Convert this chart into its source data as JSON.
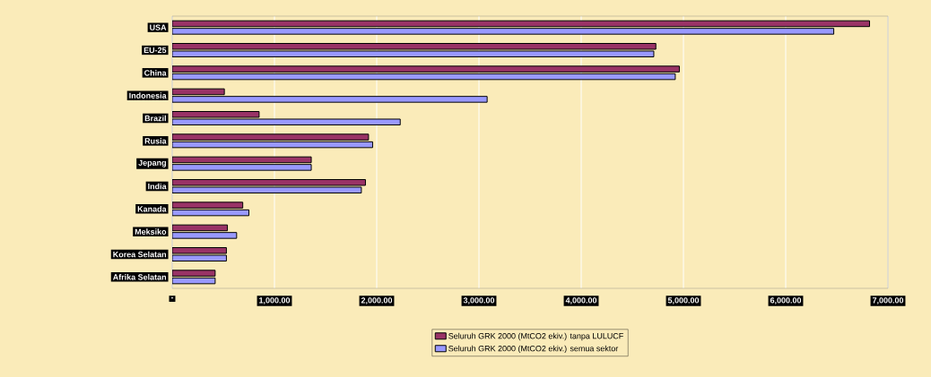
{
  "chart_data": {
    "type": "bar",
    "orientation": "horizontal",
    "categories": [
      "USA",
      "EU-25",
      "China",
      "Indonesia",
      "Brazil",
      "Rusia",
      "Jepang",
      "India",
      "Kanada",
      "Meksiko",
      "Korea Selatan",
      "Afrika Selatan"
    ],
    "series": [
      {
        "name": "Seluruh GRK 2000 (MtCO2 ekiv.) tanpa LULUCF",
        "color": "#993366",
        "values": [
          6820,
          4730,
          4960,
          510,
          850,
          1920,
          1360,
          1890,
          690,
          540,
          530,
          420
        ]
      },
      {
        "name": "Seluruh GRK 2000 (MtCO2 ekiv.) semua sektor",
        "color": "#9999ff",
        "values": [
          6470,
          4710,
          4920,
          3080,
          2230,
          1960,
          1360,
          1850,
          750,
          630,
          530,
          420
        ]
      }
    ],
    "xlim": [
      0,
      7000
    ],
    "xticks": [
      {
        "value": 0,
        "label": "-"
      },
      {
        "value": 1000,
        "label": "1,000.00"
      },
      {
        "value": 2000,
        "label": "2,000.00"
      },
      {
        "value": 3000,
        "label": "3,000.00"
      },
      {
        "value": 4000,
        "label": "4,000.00"
      },
      {
        "value": 5000,
        "label": "5,000.00"
      },
      {
        "value": 6000,
        "label": "6,000.00"
      },
      {
        "value": 7000,
        "label": "7,000.00"
      }
    ],
    "grid": "x",
    "legend": "bottom"
  }
}
